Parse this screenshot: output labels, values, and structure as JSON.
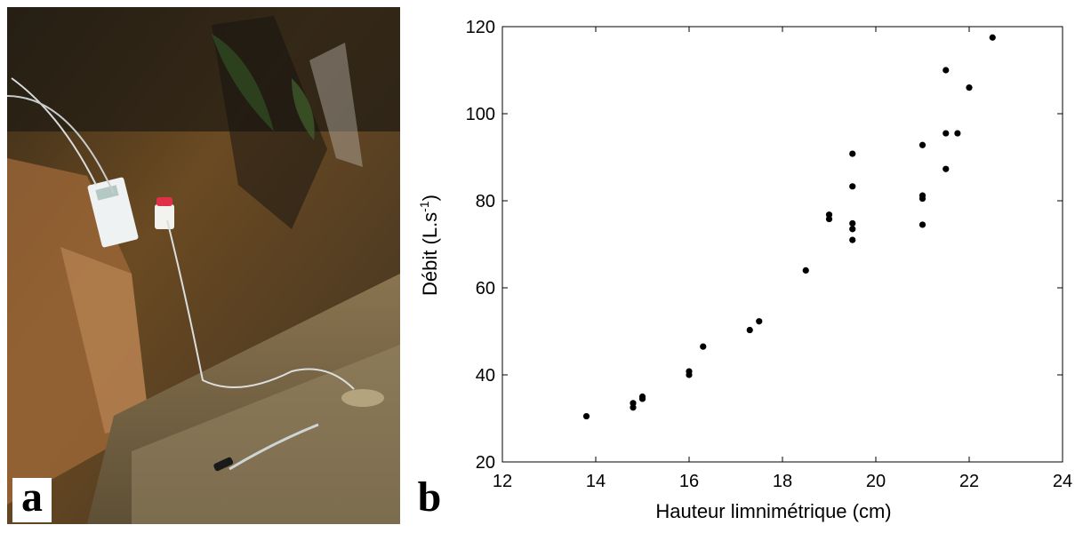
{
  "panels": {
    "photo_label": "a",
    "chart_label": "b"
  },
  "chart_data": {
    "type": "scatter",
    "title": "",
    "xlabel": "Hauteur limnimétrique (cm)",
    "ylabel_main": "Débit (L.s",
    "ylabel_sup": "-1",
    "ylabel_end": ")",
    "xlim": [
      12,
      24
    ],
    "ylim": [
      20,
      120
    ],
    "xticks": [
      12,
      14,
      16,
      18,
      20,
      22,
      24
    ],
    "yticks": [
      20,
      40,
      60,
      80,
      100,
      120
    ],
    "grid": false,
    "marker_color": "#000000",
    "points": [
      {
        "x": 13.8,
        "y": 30.5
      },
      {
        "x": 14.8,
        "y": 32.5
      },
      {
        "x": 14.8,
        "y": 33.5
      },
      {
        "x": 15.0,
        "y": 34.5
      },
      {
        "x": 15.0,
        "y": 35.0
      },
      {
        "x": 16.0,
        "y": 40.0
      },
      {
        "x": 16.0,
        "y": 40.8
      },
      {
        "x": 16.3,
        "y": 46.5
      },
      {
        "x": 17.3,
        "y": 50.3
      },
      {
        "x": 17.5,
        "y": 52.3
      },
      {
        "x": 18.5,
        "y": 64.0
      },
      {
        "x": 19.0,
        "y": 75.8
      },
      {
        "x": 19.0,
        "y": 76.8
      },
      {
        "x": 19.5,
        "y": 71.0
      },
      {
        "x": 19.5,
        "y": 73.5
      },
      {
        "x": 19.5,
        "y": 74.8
      },
      {
        "x": 19.5,
        "y": 83.3
      },
      {
        "x": 19.5,
        "y": 90.8
      },
      {
        "x": 21.0,
        "y": 74.5
      },
      {
        "x": 21.0,
        "y": 80.5
      },
      {
        "x": 21.0,
        "y": 81.2
      },
      {
        "x": 21.0,
        "y": 92.8
      },
      {
        "x": 21.5,
        "y": 87.3
      },
      {
        "x": 21.5,
        "y": 95.5
      },
      {
        "x": 21.75,
        "y": 95.5
      },
      {
        "x": 21.5,
        "y": 110.0
      },
      {
        "x": 22.0,
        "y": 106.0
      },
      {
        "x": 22.5,
        "y": 117.5
      }
    ]
  }
}
